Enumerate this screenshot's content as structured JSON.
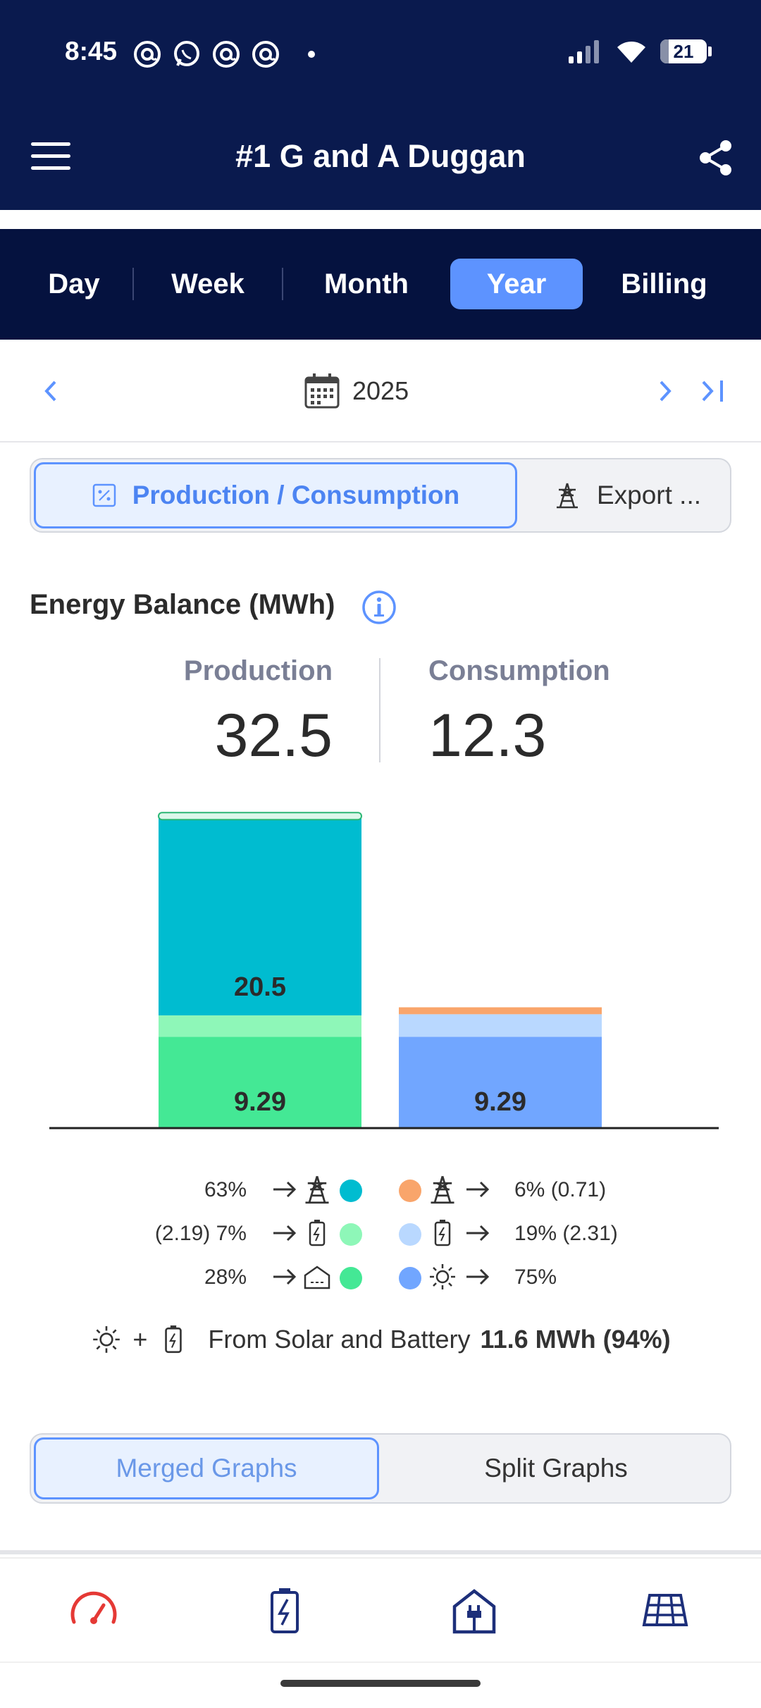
{
  "status_bar": {
    "time": "8:45",
    "battery": "21",
    "notifications": [
      "threads-icon",
      "whatsapp-icon",
      "threads-icon",
      "threads-icon"
    ]
  },
  "header": {
    "title": "#1 G and A Duggan"
  },
  "period_tabs": [
    {
      "label": "Day",
      "active": false
    },
    {
      "label": "Week",
      "active": false
    },
    {
      "label": "Month",
      "active": false
    },
    {
      "label": "Year",
      "active": true
    },
    {
      "label": "Billing",
      "active": false
    }
  ],
  "date_nav": {
    "label": "2025"
  },
  "view_switch": {
    "production_label": "Production / Consumption",
    "export_label": "Export ..."
  },
  "energy_balance": {
    "title": "Energy Balance (MWh)",
    "production_label": "Production",
    "production_value": "32.5",
    "consumption_label": "Consumption",
    "consumption_value": "12.3"
  },
  "chart_data": {
    "type": "bar",
    "stacked": true,
    "categories": [
      "Production",
      "Consumption"
    ],
    "series": [
      {
        "name": "Production to home",
        "color": "#44e895",
        "values": [
          9.29,
          0
        ]
      },
      {
        "name": "Production to battery",
        "color": "#8ef7b8",
        "values": [
          2.19,
          0
        ]
      },
      {
        "name": "Production to grid",
        "color": "#00bcd0",
        "values": [
          20.5,
          0
        ]
      },
      {
        "name": "Consumption from solar",
        "color": "#71a6ff",
        "values": [
          0,
          9.29
        ]
      },
      {
        "name": "Consumption from battery",
        "color": "#b9d8ff",
        "values": [
          0,
          2.31
        ]
      },
      {
        "name": "Consumption from grid",
        "color": "#f9a56b",
        "values": [
          0,
          0.71
        ]
      }
    ],
    "data_labels": [
      "20.5",
      "9.29",
      "9.29"
    ],
    "ylim": [
      0,
      32.5
    ]
  },
  "legend": {
    "production": [
      {
        "text": "63%",
        "icon": "transmission-tower-icon",
        "color": "#00bcd0"
      },
      {
        "text": "(2.19) 7%",
        "icon": "battery-icon",
        "color": "#8ef7b8"
      },
      {
        "text": "28%",
        "icon": "house-icon",
        "color": "#44e895"
      }
    ],
    "consumption": [
      {
        "text": "6% (0.71)",
        "icon": "transmission-tower-icon",
        "color": "#f9a56b"
      },
      {
        "text": "19% (2.31)",
        "icon": "battery-icon",
        "color": "#b9d8ff"
      },
      {
        "text": "75%",
        "icon": "sun-icon",
        "color": "#71a6ff"
      }
    ]
  },
  "summary": {
    "plus": "+",
    "label": "From Solar and Battery",
    "value": "11.6 MWh (94%)"
  },
  "graph_mode": {
    "merged_label": "Merged Graphs",
    "split_label": "Split Graphs",
    "active": "merged"
  },
  "bottom_nav": [
    {
      "icon": "gauge-icon",
      "color": "#e53935"
    },
    {
      "icon": "battery-icon",
      "color": "#1d2f7a"
    },
    {
      "icon": "home-plug-icon",
      "color": "#1d2f7a"
    },
    {
      "icon": "solar-panel-icon",
      "color": "#1d2f7a"
    }
  ]
}
